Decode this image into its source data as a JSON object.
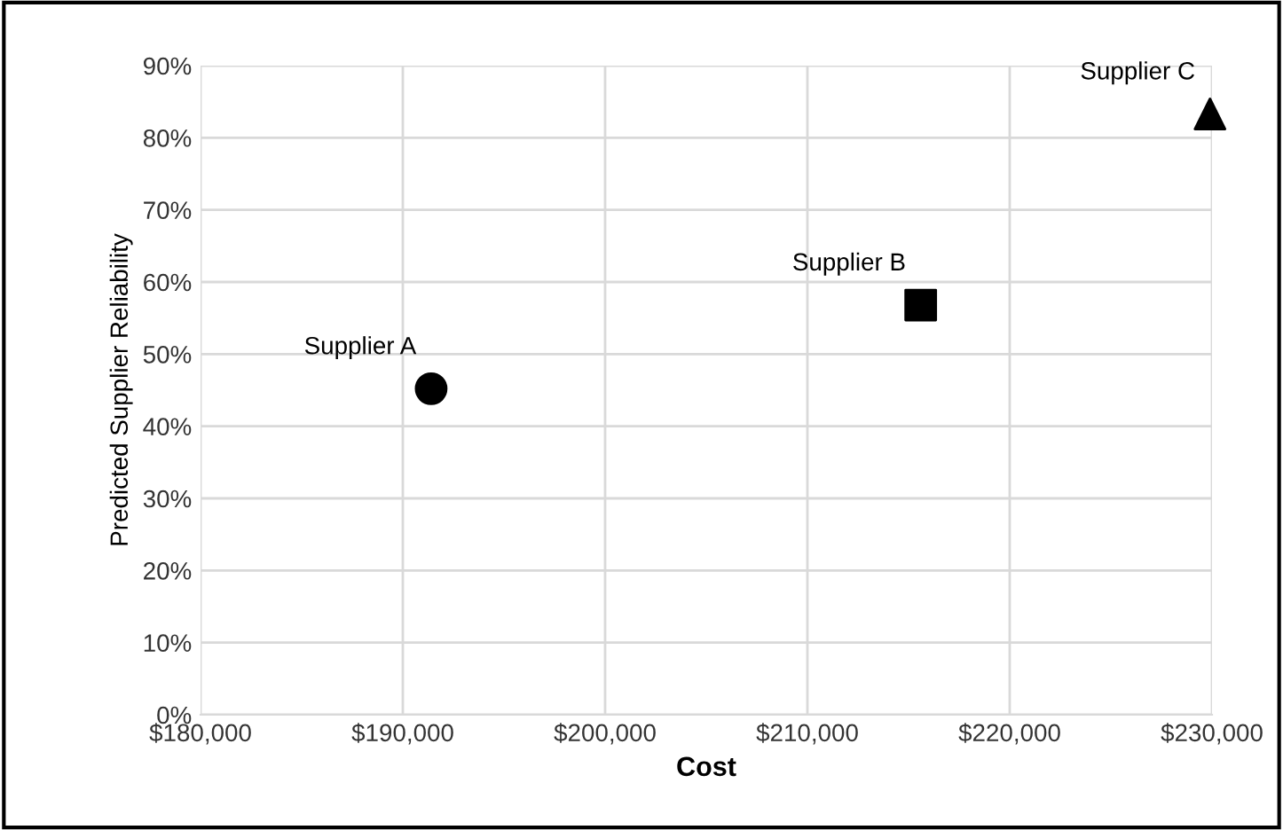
{
  "chart_data": {
    "type": "scatter",
    "xlabel": "Cost",
    "ylabel": "Predicted Supplier Reliability",
    "xlim": [
      180000,
      230000
    ],
    "ylim": [
      0,
      0.9
    ],
    "xticks": [
      {
        "value": 180000,
        "label": "$180,000"
      },
      {
        "value": 190000,
        "label": "$190,000"
      },
      {
        "value": 200000,
        "label": "$200,000"
      },
      {
        "value": 210000,
        "label": "$210,000"
      },
      {
        "value": 220000,
        "label": "$220,000"
      },
      {
        "value": 230000,
        "label": "$230,000"
      }
    ],
    "yticks": [
      {
        "value": 0,
        "label": "0%"
      },
      {
        "value": 0.1,
        "label": "10%"
      },
      {
        "value": 0.2,
        "label": "20%"
      },
      {
        "value": 0.3,
        "label": "30%"
      },
      {
        "value": 0.4,
        "label": "40%"
      },
      {
        "value": 0.5,
        "label": "50%"
      },
      {
        "value": 0.6,
        "label": "60%"
      },
      {
        "value": 0.7,
        "label": "70%"
      },
      {
        "value": 0.8,
        "label": "80%"
      },
      {
        "value": 0.9,
        "label": "90%"
      }
    ],
    "grid": true,
    "legend": false,
    "series": [
      {
        "name": "Supplier A",
        "color": "#000000",
        "marker": "circle",
        "x": [
          191400
        ],
        "values": [
          0.452
        ]
      },
      {
        "name": "Supplier B",
        "color": "#000000",
        "marker": "square",
        "x": [
          215600
        ],
        "values": [
          0.568
        ]
      },
      {
        "name": "Supplier C",
        "color": "#000000",
        "marker": "triangle",
        "x": [
          229900
        ],
        "values": [
          0.833
        ]
      }
    ]
  }
}
